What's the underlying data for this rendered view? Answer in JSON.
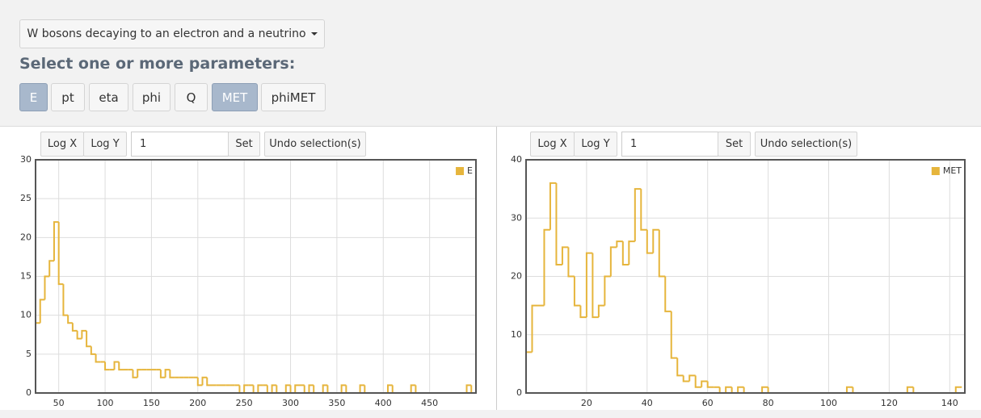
{
  "header": {
    "dataset": "W bosons decaying to an electron and a neutrino",
    "prompt": "Select one or more parameters:",
    "parameters": [
      {
        "label": "E",
        "active": true
      },
      {
        "label": "pt",
        "active": false
      },
      {
        "label": "eta",
        "active": false
      },
      {
        "label": "phi",
        "active": false
      },
      {
        "label": "Q",
        "active": false
      },
      {
        "label": "MET",
        "active": true
      },
      {
        "label": "phiMET",
        "active": false
      }
    ]
  },
  "chart_data": [
    {
      "type": "histogram",
      "toolbar": {
        "log_x": "Log X",
        "log_y": "Log Y",
        "input": "1",
        "set": "Set",
        "undo": "Undo selection(s)"
      },
      "bins": [
        25,
        30,
        35,
        40,
        45,
        50,
        55,
        60,
        65,
        70,
        75,
        80,
        85,
        90,
        95,
        100,
        105,
        110,
        115,
        120,
        125,
        130,
        135,
        140,
        145,
        150,
        155,
        160,
        165,
        170,
        175,
        180,
        185,
        190,
        195,
        200,
        205,
        210,
        215,
        220,
        225,
        230,
        235,
        240,
        245,
        250,
        255,
        260,
        265,
        270,
        275,
        280,
        285,
        290,
        295,
        300,
        305,
        310,
        315,
        320,
        325,
        330,
        335,
        340,
        345,
        350,
        355,
        360,
        365,
        370,
        375,
        380,
        385,
        390,
        395,
        400,
        405,
        410,
        415,
        420,
        425,
        430,
        435,
        440,
        445,
        450,
        455,
        460,
        465,
        470,
        475,
        480,
        485,
        490,
        495,
        500
      ],
      "series": [
        {
          "name": "E",
          "color": "#e6b53c",
          "values": [
            9,
            12,
            15,
            17,
            22,
            14,
            10,
            9,
            8,
            7,
            8,
            6,
            5,
            4,
            4,
            3,
            3,
            4,
            3,
            3,
            3,
            2,
            3,
            3,
            3,
            3,
            3,
            2,
            3,
            2,
            2,
            2,
            2,
            2,
            2,
            1,
            2,
            1,
            1,
            1,
            1,
            1,
            1,
            1,
            0,
            1,
            1,
            0,
            1,
            1,
            0,
            1,
            0,
            0,
            1,
            0,
            1,
            1,
            0,
            1,
            0,
            0,
            1,
            0,
            0,
            0,
            1,
            0,
            0,
            0,
            1,
            0,
            0,
            0,
            0,
            0,
            1,
            0,
            0,
            0,
            0,
            1,
            0,
            0,
            0,
            0,
            0,
            0,
            0,
            0,
            0,
            0,
            0,
            1,
            0
          ]
        }
      ],
      "xlim": [
        25,
        500
      ],
      "ylim": [
        0,
        30
      ],
      "xticks": [
        50,
        100,
        150,
        200,
        250,
        300,
        350,
        400,
        450
      ],
      "yticks": [
        0,
        5,
        10,
        15,
        20,
        25,
        30
      ],
      "grid": true,
      "legend": "top-right"
    },
    {
      "type": "histogram",
      "toolbar": {
        "log_x": "Log X",
        "log_y": "Log Y",
        "input": "1",
        "set": "Set",
        "undo": "Undo selection(s)"
      },
      "bins": [
        0,
        2,
        4,
        6,
        8,
        10,
        12,
        14,
        16,
        18,
        20,
        22,
        24,
        26,
        28,
        30,
        32,
        34,
        36,
        38,
        40,
        42,
        44,
        46,
        48,
        50,
        52,
        54,
        56,
        58,
        60,
        62,
        64,
        66,
        68,
        70,
        72,
        74,
        76,
        78,
        80,
        82,
        84,
        86,
        88,
        90,
        92,
        94,
        96,
        98,
        100,
        102,
        104,
        106,
        108,
        110,
        112,
        114,
        116,
        118,
        120,
        122,
        124,
        126,
        128,
        130,
        132,
        134,
        136,
        138,
        140,
        142,
        144
      ],
      "series": [
        {
          "name": "MET",
          "color": "#e6b53c",
          "values": [
            7,
            15,
            15,
            28,
            36,
            22,
            25,
            20,
            15,
            13,
            24,
            13,
            15,
            20,
            25,
            26,
            22,
            26,
            35,
            28,
            24,
            28,
            20,
            14,
            6,
            3,
            2,
            3,
            1,
            2,
            1,
            1,
            0,
            1,
            0,
            1,
            0,
            0,
            0,
            1,
            0,
            0,
            0,
            0,
            0,
            0,
            0,
            0,
            0,
            0,
            0,
            0,
            0,
            1,
            0,
            0,
            0,
            0,
            0,
            0,
            0,
            0,
            0,
            1,
            0,
            0,
            0,
            0,
            0,
            0,
            0,
            1
          ]
        }
      ],
      "xlim": [
        0,
        145
      ],
      "ylim": [
        0,
        40
      ],
      "xticks": [
        20,
        40,
        60,
        80,
        100,
        120,
        140
      ],
      "yticks": [
        0,
        10,
        20,
        30,
        40
      ],
      "grid": true,
      "legend": "top-right"
    }
  ]
}
